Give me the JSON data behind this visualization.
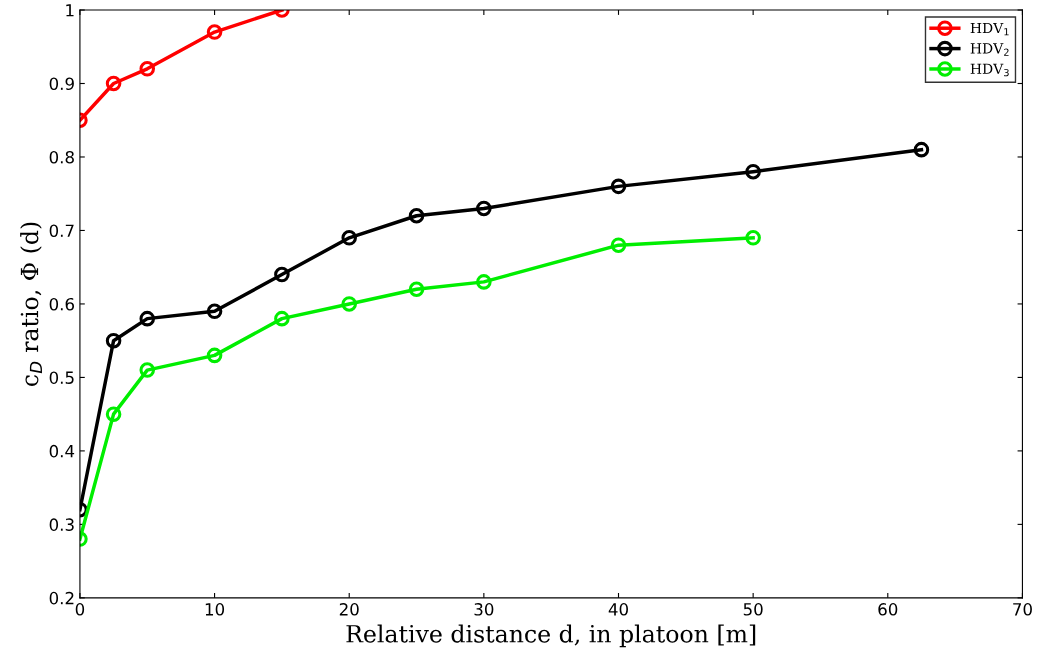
{
  "chart_data": {
    "type": "line",
    "xlabel": "Relative distance d, in platoon [m]",
    "ylabel": "c$_{D}$ ratio, Φ (d)",
    "xlim": [
      0,
      70
    ],
    "xticks": [
      0,
      10,
      20,
      30,
      40,
      50,
      60,
      70
    ],
    "ylim": [
      0.2,
      1
    ],
    "yticks": [
      0.2,
      0.3,
      0.4,
      0.5,
      0.6,
      0.7,
      0.8,
      0.9,
      1
    ],
    "grid": false,
    "legend": "top right",
    "marker": "circle",
    "line_style": "solid",
    "series": [
      {
        "name": "HDV$_{1}$",
        "color": "#ff0000",
        "x": [
          0,
          2.5,
          5,
          10,
          15
        ],
        "values": [
          0.85,
          0.9,
          0.92,
          0.97,
          1.0
        ]
      },
      {
        "name": "HDV$_{2}$",
        "color": "#000000",
        "x": [
          0,
          2.5,
          5,
          10,
          15,
          20,
          25,
          30,
          40,
          50,
          62.5
        ],
        "values": [
          0.32,
          0.55,
          0.58,
          0.59,
          0.64,
          0.69,
          0.72,
          0.73,
          0.76,
          0.78,
          0.81
        ]
      },
      {
        "name": "HDV$_{3}$",
        "color": "#00ee00",
        "x": [
          0,
          2.5,
          5,
          10,
          15,
          20,
          25,
          30,
          40,
          50
        ],
        "values": [
          0.28,
          0.45,
          0.51,
          0.53,
          0.58,
          0.6,
          0.62,
          0.63,
          0.68,
          0.69
        ]
      }
    ]
  }
}
